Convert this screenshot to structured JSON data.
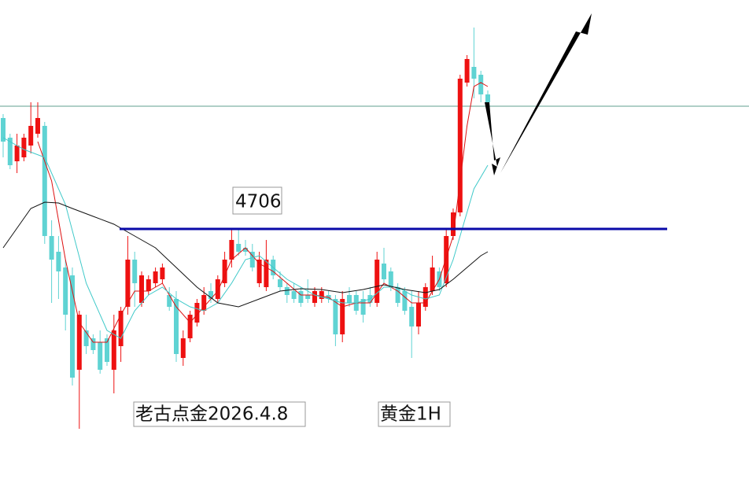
{
  "chart_data": {
    "type": "candlestick",
    "ylim": [
      4364,
      4997
    ],
    "up_color": "#ee1111",
    "down_color": "#5fd3d3",
    "open": [
      4847,
      4822,
      4792,
      4797,
      4812,
      4827,
      4837,
      4697,
      4677,
      4657,
      4647,
      4527,
      4577,
      4567,
      4562,
      4567,
      4527,
      4557,
      4607,
      4667,
      4612,
      4627,
      4637,
      4642,
      4622,
      4617,
      4542,
      4567,
      4587,
      4602,
      4627,
      4617,
      4637,
      4667,
      4687,
      4682,
      4677,
      4637,
      4632,
      4667,
      4642,
      4632,
      4627,
      4627,
      4622,
      4612,
      4617,
      4622,
      4617,
      4572,
      4622,
      4622,
      4617,
      4622,
      4612,
      4662,
      4652,
      4632,
      4627,
      4607,
      4582,
      4607,
      4627,
      4652,
      4637,
      4697,
      4727,
      4892,
      4912,
      4902,
      4877
    ],
    "high": [
      4852,
      4827,
      4827,
      4827,
      4867,
      4867,
      4842,
      4717,
      4697,
      4667,
      4657,
      4602,
      4597,
      4572,
      4577,
      4572,
      4597,
      4607,
      4697,
      4677,
      4652,
      4647,
      4657,
      4662,
      4632,
      4627,
      4577,
      4602,
      4617,
      4632,
      4637,
      4647,
      4677,
      4707,
      4707,
      4692,
      4687,
      4677,
      4692,
      4672,
      4652,
      4637,
      4637,
      4632,
      4642,
      4632,
      4632,
      4627,
      4622,
      4627,
      4632,
      4627,
      4627,
      4632,
      4677,
      4682,
      4657,
      4637,
      4632,
      4627,
      4627,
      4637,
      4672,
      4657,
      4707,
      4732,
      4902,
      4927,
      4962,
      4907,
      4882
    ],
    "low": [
      4797,
      4782,
      4777,
      4792,
      4802,
      4822,
      4687,
      4612,
      4617,
      4577,
      4507,
      4452,
      4547,
      4547,
      4522,
      4532,
      4497,
      4537,
      4597,
      4607,
      4607,
      4622,
      4632,
      4637,
      4602,
      4537,
      4532,
      4562,
      4582,
      4597,
      4612,
      4612,
      4632,
      4657,
      4672,
      4672,
      4652,
      4632,
      4627,
      4642,
      4627,
      4612,
      4612,
      4607,
      4612,
      4607,
      4612,
      4612,
      4557,
      4562,
      4607,
      4597,
      4587,
      4607,
      4607,
      4637,
      4627,
      4607,
      4597,
      4542,
      4572,
      4602,
      4622,
      4627,
      4632,
      4692,
      4722,
      4887,
      4872,
      4867,
      4862
    ],
    "close": [
      4817,
      4787,
      4812,
      4822,
      4837,
      4847,
      4697,
      4667,
      4652,
      4597,
      4517,
      4597,
      4557,
      4552,
      4527,
      4537,
      4577,
      4602,
      4667,
      4637,
      4647,
      4642,
      4652,
      4657,
      4607,
      4547,
      4567,
      4597,
      4612,
      4622,
      4617,
      4642,
      4667,
      4692,
      4677,
      4677,
      4657,
      4667,
      4667,
      4647,
      4632,
      4622,
      4617,
      4612,
      4617,
      4627,
      4627,
      4617,
      4572,
      4617,
      4612,
      4602,
      4597,
      4612,
      4667,
      4642,
      4632,
      4612,
      4602,
      4582,
      4612,
      4632,
      4657,
      4632,
      4697,
      4727,
      4897,
      4922,
      4897,
      4877,
      4867
    ],
    "ma_lines": [
      {
        "color": "#dd1111",
        "x": [
          5,
          7,
          9,
          11,
          13,
          15,
          17,
          19,
          21,
          23,
          25,
          27,
          29,
          31,
          33,
          35,
          37,
          39,
          41,
          43,
          45,
          47,
          49,
          51,
          53,
          55,
          57,
          59,
          61,
          63,
          65,
          66,
          67,
          68,
          69,
          70
        ],
        "values": [
          4817,
          4767,
          4667,
          4587,
          4562,
          4562,
          4597,
          4627,
          4627,
          4637,
          4607,
          4587,
          4607,
          4627,
          4667,
          4682,
          4662,
          4652,
          4637,
          4622,
          4622,
          4619,
          4607,
          4612,
          4612,
          4637,
          4627,
          4612,
          4612,
          4642,
          4697,
          4767,
          4837,
          4887,
          4892,
          4887
        ]
      },
      {
        "color": "#3fc9c9",
        "x": [
          0,
          3,
          6,
          9,
          12,
          15,
          17,
          19,
          21,
          23,
          25,
          27,
          29,
          31,
          33,
          35,
          37,
          39,
          41,
          43,
          45,
          47,
          49,
          51,
          53,
          55,
          57,
          59,
          61,
          63,
          65,
          67,
          68,
          70
        ],
        "values": [
          4822,
          4807,
          4797,
          4737,
          4637,
          4577,
          4567,
          4602,
          4622,
          4632,
          4617,
          4607,
          4602,
          4612,
          4637,
          4667,
          4672,
          4657,
          4642,
          4632,
          4622,
          4617,
          4612,
          4612,
          4617,
          4632,
          4632,
          4622,
          4617,
          4622,
          4667,
          4727,
          4757,
          4787
        ]
      },
      {
        "color": "#111111",
        "x": [
          0,
          2,
          4,
          6,
          8,
          10,
          13,
          16,
          19,
          22,
          25,
          28,
          31,
          34,
          37,
          40,
          43,
          46,
          49,
          52,
          55,
          58,
          61,
          63,
          65,
          67,
          69,
          70
        ],
        "values": [
          4682,
          4707,
          4732,
          4740,
          4739,
          4732,
          4722,
          4712,
          4697,
          4682,
          4657,
          4632,
          4612,
          4607,
          4617,
          4627,
          4630,
          4629,
          4625,
          4629,
          4635,
          4629,
          4625,
          4629,
          4642,
          4657,
          4672,
          4677
        ]
      }
    ],
    "reference_line": {
      "value": 4862,
      "color": "#5f9f8f"
    },
    "level_line": {
      "value": 4706,
      "color": "#0a0aa8"
    },
    "annotations": [
      "4706",
      "老古点金2026.4.8",
      "黄金1H"
    ]
  }
}
